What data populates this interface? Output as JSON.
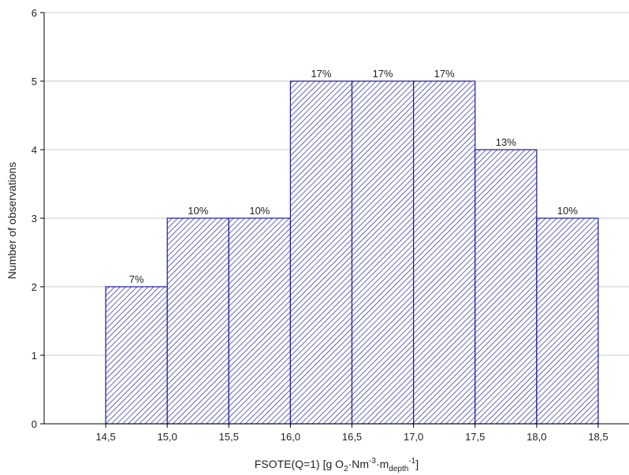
{
  "chart_data": {
    "type": "bar",
    "bin_edges": [
      14.5,
      15.0,
      15.5,
      16.0,
      16.5,
      17.0,
      17.5,
      18.0,
      18.5
    ],
    "values": [
      2,
      3,
      3,
      5,
      5,
      5,
      4,
      3
    ],
    "data_labels": [
      "7%",
      "10%",
      "10%",
      "17%",
      "17%",
      "17%",
      "13%",
      "10%"
    ],
    "x_tick_labels": [
      "14,5",
      "15,0",
      "15,5",
      "16,0",
      "16,5",
      "17,0",
      "17,5",
      "18,0",
      "18,5"
    ],
    "y_ticks": [
      0,
      1,
      2,
      3,
      4,
      5,
      6
    ],
    "y_tick_labels": [
      "0",
      "1",
      "2",
      "3",
      "4",
      "5",
      "6"
    ],
    "xlim": [
      14.0,
      18.75
    ],
    "ylim": [
      0,
      6
    ],
    "xlabel": {
      "prefix": "FSOTE(Q=1) [g O",
      "sub1": "2",
      "mid1": "·Nm",
      "sup1": "-3",
      "mid2": "·m",
      "sub2": "depth",
      "sup2": "-1",
      "suffix": "]"
    },
    "ylabel": "Number of observations",
    "grid": true,
    "bar_fill": "hatched",
    "colors": {
      "bar_stroke": "#1a1a99",
      "hatch": "#2424a8",
      "grid": "#c8c8c8",
      "axis": "#000000"
    }
  }
}
